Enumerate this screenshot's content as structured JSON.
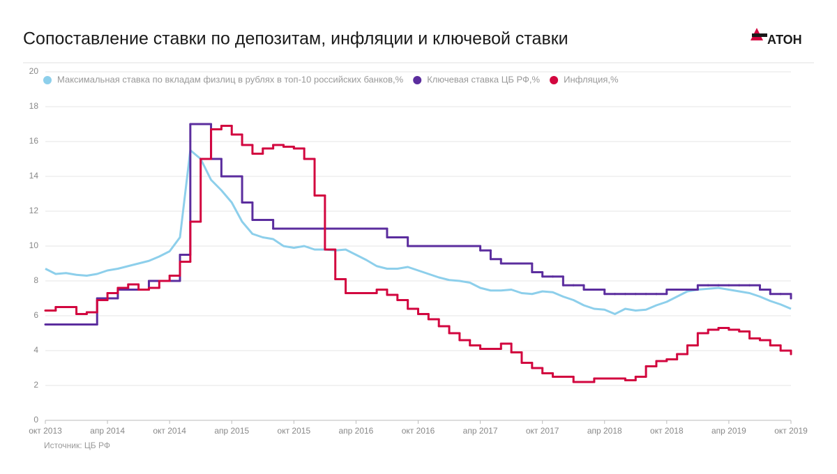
{
  "chart_data": {
    "type": "line",
    "title": "Сопоставление ставки по депозитам, инфляции и ключевой ставки",
    "logo": "АТОН",
    "source": "Источник: ЦБ РФ",
    "x": [
      "2013-10",
      "2013-11",
      "2013-12",
      "2014-01",
      "2014-02",
      "2014-03",
      "2014-04",
      "2014-05",
      "2014-06",
      "2014-07",
      "2014-08",
      "2014-09",
      "2014-10",
      "2014-11",
      "2014-12",
      "2015-01",
      "2015-02",
      "2015-03",
      "2015-04",
      "2015-05",
      "2015-06",
      "2015-07",
      "2015-08",
      "2015-09",
      "2015-10",
      "2015-11",
      "2015-12",
      "2016-01",
      "2016-02",
      "2016-03",
      "2016-04",
      "2016-05",
      "2016-06",
      "2016-07",
      "2016-08",
      "2016-09",
      "2016-10",
      "2016-11",
      "2016-12",
      "2017-01",
      "2017-02",
      "2017-03",
      "2017-04",
      "2017-05",
      "2017-06",
      "2017-07",
      "2017-08",
      "2017-09",
      "2017-10",
      "2017-11",
      "2017-12",
      "2018-01",
      "2018-02",
      "2018-03",
      "2018-04",
      "2018-05",
      "2018-06",
      "2018-07",
      "2018-08",
      "2018-09",
      "2018-10",
      "2018-11",
      "2018-12",
      "2019-01",
      "2019-02",
      "2019-03",
      "2019-04",
      "2019-05",
      "2019-06",
      "2019-07",
      "2019-08",
      "2019-09",
      "2019-10"
    ],
    "series": [
      {
        "name": "Максимальная ставка по вкладам физлиц в рублях в топ-10 российских банков,%",
        "color": "#8dcfeb",
        "step": false,
        "values": [
          8.7,
          8.4,
          8.45,
          8.35,
          8.3,
          8.4,
          8.6,
          8.7,
          8.85,
          9.0,
          9.15,
          9.4,
          9.7,
          10.5,
          15.5,
          15.0,
          13.8,
          13.2,
          12.5,
          11.4,
          10.7,
          10.5,
          10.4,
          10.0,
          9.9,
          10.0,
          9.8,
          9.8,
          9.75,
          9.8,
          9.5,
          9.2,
          8.85,
          8.7,
          8.7,
          8.8,
          8.6,
          8.4,
          8.2,
          8.05,
          8.0,
          7.9,
          7.6,
          7.45,
          7.45,
          7.5,
          7.3,
          7.25,
          7.4,
          7.35,
          7.1,
          6.9,
          6.6,
          6.4,
          6.35,
          6.1,
          6.4,
          6.3,
          6.35,
          6.6,
          6.8,
          7.1,
          7.4,
          7.5,
          7.55,
          7.6,
          7.5,
          7.4,
          7.3,
          7.1,
          6.85,
          6.65,
          6.4
        ]
      },
      {
        "name": "Ключевая ставка ЦБ РФ,%",
        "color": "#5b2d9e",
        "step": true,
        "values": [
          5.5,
          5.5,
          5.5,
          5.5,
          5.5,
          7.0,
          7.0,
          7.5,
          7.5,
          7.5,
          8.0,
          8.0,
          8.0,
          9.5,
          17,
          17,
          15,
          14,
          14,
          12.5,
          11.5,
          11.5,
          11,
          11,
          11,
          11,
          11,
          11,
          11,
          11,
          11,
          11,
          11,
          10.5,
          10.5,
          10,
          10,
          10,
          10,
          10,
          10,
          10,
          9.75,
          9.25,
          9.0,
          9.0,
          9.0,
          8.5,
          8.25,
          8.25,
          7.75,
          7.75,
          7.5,
          7.5,
          7.25,
          7.25,
          7.25,
          7.25,
          7.25,
          7.25,
          7.5,
          7.5,
          7.5,
          7.75,
          7.75,
          7.75,
          7.75,
          7.75,
          7.75,
          7.5,
          7.25,
          7.25,
          7.0
        ]
      },
      {
        "name": "Инфляция,%",
        "color": "#d2063f",
        "step": true,
        "values": [
          6.3,
          6.5,
          6.5,
          6.1,
          6.2,
          6.9,
          7.3,
          7.6,
          7.8,
          7.5,
          7.6,
          8.0,
          8.3,
          9.1,
          11.4,
          15.0,
          16.7,
          16.9,
          16.4,
          15.8,
          15.3,
          15.6,
          15.8,
          15.7,
          15.6,
          15.0,
          12.9,
          9.8,
          8.1,
          7.3,
          7.3,
          7.3,
          7.5,
          7.2,
          6.9,
          6.4,
          6.1,
          5.8,
          5.4,
          5.0,
          4.6,
          4.3,
          4.1,
          4.1,
          4.4,
          3.9,
          3.3,
          3.0,
          2.7,
          2.5,
          2.5,
          2.2,
          2.2,
          2.4,
          2.4,
          2.4,
          2.3,
          2.5,
          3.1,
          3.4,
          3.5,
          3.8,
          4.3,
          5.0,
          5.2,
          5.3,
          5.2,
          5.1,
          4.7,
          4.6,
          4.3,
          4.0,
          3.8
        ]
      }
    ],
    "xlim": [
      "2013-10",
      "2019-10"
    ],
    "xticks": [
      {
        "value": "2013-10",
        "label": "окт 2013"
      },
      {
        "value": "2014-04",
        "label": "апр 2014"
      },
      {
        "value": "2014-10",
        "label": "окт 2014"
      },
      {
        "value": "2015-04",
        "label": "апр 2015"
      },
      {
        "value": "2015-10",
        "label": "окт 2015"
      },
      {
        "value": "2016-04",
        "label": "апр 2016"
      },
      {
        "value": "2016-10",
        "label": "окт 2016"
      },
      {
        "value": "2017-04",
        "label": "апр 2017"
      },
      {
        "value": "2017-10",
        "label": "окт 2017"
      },
      {
        "value": "2018-04",
        "label": "апр 2018"
      },
      {
        "value": "2018-10",
        "label": "окт 2018"
      },
      {
        "value": "2019-04",
        "label": "апр 2019"
      },
      {
        "value": "2019-10",
        "label": "окт 2019"
      }
    ],
    "ylim": [
      0,
      20
    ],
    "yticks": [
      0,
      2,
      4,
      6,
      8,
      10,
      12,
      14,
      16,
      18,
      20
    ],
    "grid": true
  }
}
